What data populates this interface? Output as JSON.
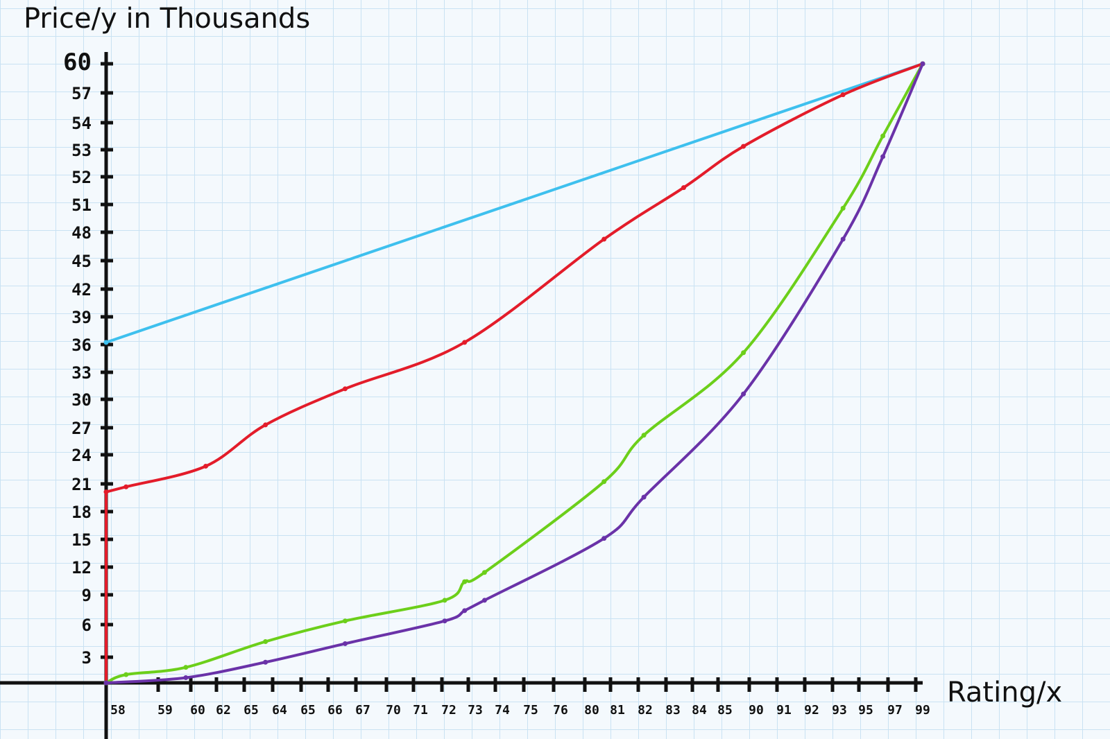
{
  "chart_data": {
    "type": "line",
    "title": "",
    "ylabel": "Price/y in Thousands",
    "xlabel": "Rating/x",
    "y_ticks": [
      "60",
      "57",
      "54",
      "53",
      "52",
      "51",
      "48",
      "45",
      "42",
      "39",
      "36",
      "33",
      "30",
      "27",
      "24",
      "21",
      "18",
      "15",
      "12",
      "9",
      "6",
      "3"
    ],
    "x_ticks": [
      "58",
      "59",
      "60",
      "62",
      "65",
      "64",
      "65",
      "66",
      "67",
      "70",
      "71",
      "72",
      "73",
      "74",
      "75",
      "76",
      "80",
      "81",
      "82",
      "83",
      "84",
      "85",
      "90",
      "91",
      "92",
      "93",
      "95",
      "97",
      "99"
    ],
    "grid": true,
    "series": [
      {
        "color": "#3ec0ee",
        "values": [
          [
            58,
            33
          ],
          [
            99,
            60
          ]
        ]
      },
      {
        "color": "#e31c2a",
        "values": [
          [
            58,
            0
          ],
          [
            58,
            18.5
          ],
          [
            59,
            19
          ],
          [
            63,
            21
          ],
          [
            66,
            25
          ],
          [
            70,
            28.5
          ],
          [
            76,
            33
          ],
          [
            83,
            43
          ],
          [
            87,
            48
          ],
          [
            90,
            52
          ],
          [
            95,
            57
          ],
          [
            99,
            60
          ]
        ]
      },
      {
        "color": "#6ccf1a",
        "values": [
          [
            58,
            0
          ],
          [
            59,
            0.8
          ],
          [
            62,
            1.5
          ],
          [
            66,
            4
          ],
          [
            70,
            6
          ],
          [
            75,
            8
          ],
          [
            76,
            9.8
          ],
          [
            77,
            10.7
          ],
          [
            83,
            19.5
          ],
          [
            85,
            24
          ],
          [
            90,
            32
          ],
          [
            95,
            46
          ],
          [
            97,
            53
          ],
          [
            99,
            60
          ]
        ]
      },
      {
        "color": "#6a32a8",
        "values": [
          [
            58,
            0
          ],
          [
            62,
            0.5
          ],
          [
            66,
            2
          ],
          [
            70,
            3.8
          ],
          [
            75,
            6
          ],
          [
            76,
            7
          ],
          [
            77,
            8
          ],
          [
            83,
            14
          ],
          [
            85,
            18
          ],
          [
            90,
            28
          ],
          [
            95,
            43
          ],
          [
            97,
            51
          ],
          [
            99,
            60
          ]
        ]
      }
    ]
  }
}
